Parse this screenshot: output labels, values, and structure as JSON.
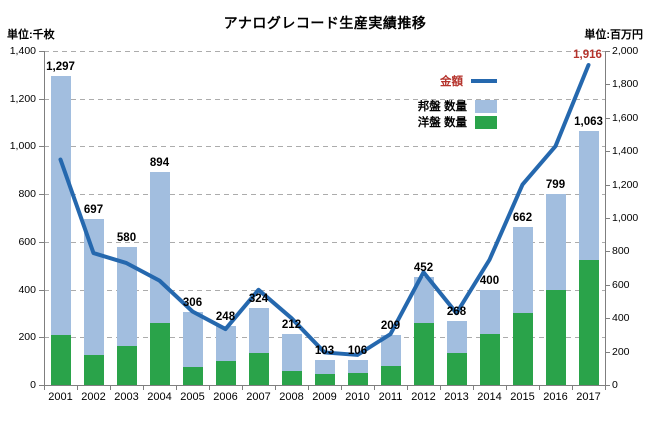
{
  "colors": {
    "accent_red": "#B5332C",
    "line_blue": "#2568AE",
    "bar_blue": "#A2BEDF",
    "bar_green": "#2AA34A",
    "grid_gray": "#ACACAC",
    "axis_gray": "#7F7F7F"
  },
  "chart_data": {
    "type": "bar",
    "subtype": "stacked-bar-with-line",
    "title": "アナログレコード生産実績推移",
    "grid": "horizontal-dashed",
    "legend_position": "inside-top-right",
    "left_axis": {
      "unit_label": "単位:千枚",
      "min": 0,
      "max": 1400,
      "step": 200
    },
    "right_axis": {
      "unit_label": "単位:百万円",
      "min": 0,
      "max": 2000,
      "step": 200
    },
    "categories": [
      "2001",
      "2002",
      "2003",
      "2004",
      "2005",
      "2006",
      "2007",
      "2008",
      "2009",
      "2010",
      "2011",
      "2012",
      "2013",
      "2014",
      "2015",
      "2016",
      "2017"
    ],
    "series": [
      {
        "name": "金額",
        "type": "line",
        "axis": "right",
        "color": "#2568AE",
        "label_color": "#B5332C",
        "end_value_label": "1,916",
        "values": [
          1350,
          790,
          730,
          625,
          440,
          335,
          570,
          400,
          195,
          180,
          305,
          675,
          430,
          750,
          1200,
          1430,
          1916
        ]
      },
      {
        "name": "邦盤 数量",
        "type": "bar",
        "axis": "left",
        "stack": "top",
        "color": "#A2BEDF",
        "values": [
          1087,
          572,
          415,
          634,
          231,
          148,
          189,
          152,
          58,
          56,
          129,
          192,
          135,
          185,
          362,
          399,
          538
        ]
      },
      {
        "name": "洋盤 数量",
        "type": "bar",
        "axis": "left",
        "stack": "bottom",
        "color": "#2AA34A",
        "values": [
          210,
          125,
          165,
          260,
          75,
          100,
          135,
          60,
          45,
          50,
          80,
          260,
          133,
          215,
          300,
          400,
          525
        ]
      }
    ],
    "bar_total_labels": [
      "1,297",
      "697",
      "580",
      "894",
      "306",
      "248",
      "324",
      "212",
      "103",
      "106",
      "209",
      "452",
      "268",
      "400",
      "662",
      "799",
      "1,063"
    ]
  }
}
